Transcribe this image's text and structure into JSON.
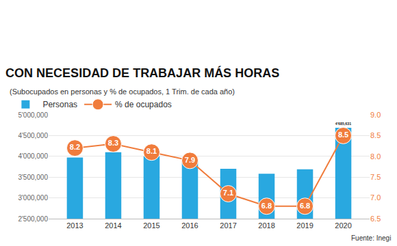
{
  "chart_data": {
    "type": "bar",
    "title": "CON NECESIDAD DE TRABAJAR MÁS HORAS",
    "subtitle": "(Subocupados en personas y % de ocupados, 1 Trim. de cada año)",
    "categories": [
      "2013",
      "2014",
      "2015",
      "2016",
      "2017",
      "2018",
      "2019",
      "2020"
    ],
    "series": [
      {
        "name": "Personas",
        "type": "bar",
        "color": "#29a8e0",
        "values": [
          3970000,
          4100000,
          4000000,
          3920000,
          3700000,
          3580000,
          3690000,
          4685631
        ],
        "value_labels": [
          null,
          null,
          null,
          null,
          null,
          null,
          null,
          "4'685,631"
        ]
      },
      {
        "name": "% de ocupados",
        "type": "line",
        "axis": "y2",
        "color": "#f07c3c",
        "marker": "circle",
        "values": [
          8.2,
          8.3,
          8.1,
          7.9,
          7.1,
          6.8,
          6.8,
          8.5
        ],
        "data_labels": true
      }
    ],
    "ylim": [
      2500000,
      5000000
    ],
    "yticks": [
      {
        "value": 2500000,
        "label": "2'500,000"
      },
      {
        "value": 3000000,
        "label": "3'000,000"
      },
      {
        "value": 3500000,
        "label": "3'500,000"
      },
      {
        "value": 4000000,
        "label": "4'000,000"
      },
      {
        "value": 4500000,
        "label": "4'500,000"
      },
      {
        "value": 5000000,
        "label": "5'000,000"
      }
    ],
    "y2lim": [
      6.5,
      9.0
    ],
    "y2ticks": [
      6.5,
      {
        "value": 7,
        "label": "7.0"
      },
      7.5,
      {
        "value": 8,
        "label": "8.0"
      },
      8.5,
      {
        "value": 9,
        "label": "9.0"
      }
    ],
    "grid": true,
    "legend": "top left",
    "annotations": [
      "Fuente: Inegi"
    ]
  }
}
